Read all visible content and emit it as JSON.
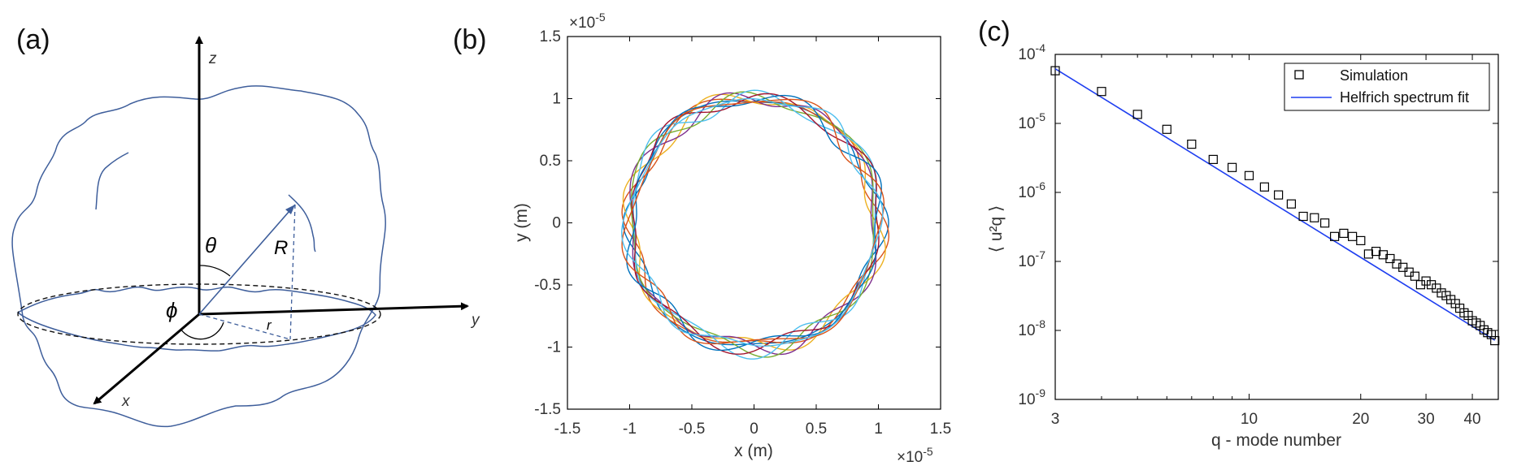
{
  "panels": [
    {
      "letter": "(a)"
    },
    {
      "letter": "(b)"
    },
    {
      "letter": "(c)"
    }
  ],
  "diagram": {
    "axis_labels": {
      "z": "z",
      "x": "x",
      "y": "y"
    },
    "symbols": {
      "theta": "θ",
      "phi": "ϕ",
      "R": "R",
      "r": "r"
    },
    "line_color": "#3e5e9b"
  },
  "chart_data": [
    {
      "type": "line",
      "panel": "(b)",
      "title": "",
      "xlabel": "x (m)",
      "ylabel": "y (m)",
      "xlim": [
        -1.5e-05,
        1.5e-05
      ],
      "ylim": [
        -1.5e-05,
        1.5e-05
      ],
      "scale_multiplier": "×10",
      "scale_exponent": "-5",
      "x_ticks": [
        "-1.5",
        "-1",
        "-0.5",
        "0",
        "0.5",
        "1",
        "1.5"
      ],
      "y_ticks": [
        "1.5",
        "1",
        "0.5",
        "0",
        "-0.5",
        "-1",
        "-1.5"
      ],
      "grid": false,
      "mean_radius": 1e-05,
      "series_colors": [
        "#0072bd",
        "#d95319",
        "#edb120",
        "#7e2f8e",
        "#77ac30",
        "#4dbeee",
        "#a2142f",
        "#0072bd",
        "#d95319",
        "#4dbeee"
      ],
      "series_count": 10
    },
    {
      "type": "scatter",
      "panel": "(c)",
      "title": "",
      "xlabel": "q - mode number",
      "ylabel": "⟨ u²q ⟩",
      "x_scale": "log",
      "y_scale": "log",
      "xlim": [
        3,
        47
      ],
      "ylim": [
        1e-09,
        0.0001
      ],
      "x_ticks": [
        "3",
        "10",
        "20",
        "30",
        "40"
      ],
      "y_ticks_base": "10",
      "y_ticks_exp": [
        "-4",
        "-5",
        "-6",
        "-7",
        "-8",
        "-9"
      ],
      "legend_position": "top-right",
      "legend": [
        "Simulation",
        "Helfrich spectrum fit"
      ],
      "series": [
        {
          "name": "Simulation",
          "marker": "square",
          "x": [
            3,
            4,
            5,
            6,
            7,
            8,
            9,
            10,
            11,
            12,
            13,
            14,
            15,
            16,
            17,
            18,
            19,
            20,
            21,
            22,
            23,
            24,
            25,
            26,
            27,
            28,
            29,
            30,
            31,
            32,
            33,
            34,
            35,
            36,
            37,
            38,
            39,
            40,
            41,
            42,
            43,
            44,
            45,
            46
          ],
          "y": [
            5.8e-05,
            2.9e-05,
            1.35e-05,
            8.2e-06,
            5e-06,
            3e-06,
            2.3e-06,
            1.75e-06,
            1.2e-06,
            9.2e-07,
            6.8e-07,
            4.5e-07,
            4.3e-07,
            3.6e-07,
            2.3e-07,
            2.55e-07,
            2.3e-07,
            2e-07,
            1.28e-07,
            1.4e-07,
            1.25e-07,
            1.1e-07,
            9.2e-08,
            8.2e-08,
            7e-08,
            6.1e-08,
            4.6e-08,
            5.2e-08,
            4.6e-08,
            4.1e-08,
            3.5e-08,
            3.2e-08,
            2.8e-08,
            2.45e-08,
            2.1e-08,
            1.8e-08,
            1.65e-08,
            1.38e-08,
            1.28e-08,
            1.18e-08,
            1.02e-08,
            9.3e-09,
            8.7e-09,
            7.1e-09
          ]
        },
        {
          "name": "Helfrich spectrum fit",
          "color": "#1f3ff0",
          "x": [
            3,
            46
          ],
          "y": [
            6.2e-05,
            7.2e-09
          ]
        }
      ]
    }
  ]
}
